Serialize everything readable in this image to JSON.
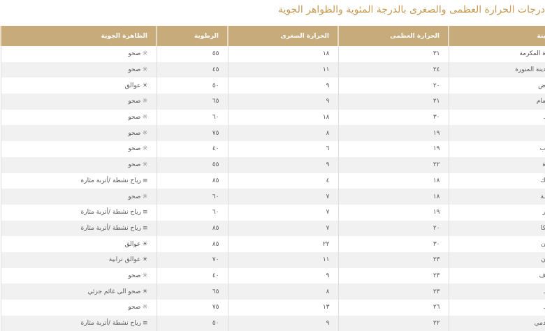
{
  "title": "درجات الحرارة العظمى والصغرى بالدرجة المئوية والظواهر الجوية",
  "headers": {
    "city": "ينة",
    "max": "الحرارة العظمى",
    "min": "الحرارة الصغرى",
    "humidity": "الرطوبة",
    "weather": "الظاهرة الجوية"
  },
  "colors": {
    "header": "#c8ab7a",
    "title": "#c49a52"
  },
  "rows": [
    {
      "city": "ة المكرمة",
      "max": "٣١",
      "min": "١٨",
      "humidity": "٥٥",
      "icon": "sun-icon",
      "weather": "صحو"
    },
    {
      "city": "دينة المنورة",
      "max": "٢٤",
      "min": "١١",
      "humidity": "٤٥",
      "icon": "sun-icon",
      "weather": "صحو"
    },
    {
      "city": "ض",
      "max": "٢٠",
      "min": "٩",
      "humidity": "٥٠",
      "icon": "haze-icon",
      "weather": "عوالق"
    },
    {
      "city": "مام",
      "max": "٢١",
      "min": "٩",
      "humidity": "٦٥",
      "icon": "sun-icon",
      "weather": "صحو"
    },
    {
      "city": "ـ",
      "max": "٣٠",
      "min": "١٨",
      "humidity": "٦٠",
      "icon": "sun-icon",
      "weather": "صحو"
    },
    {
      "city": "",
      "max": "١٩",
      "min": "٨",
      "humidity": "٧٥",
      "icon": "sun-icon",
      "weather": "صحو"
    },
    {
      "city": "ب",
      "max": "١٩",
      "min": "٦",
      "humidity": "٤٠",
      "icon": "sun-icon",
      "weather": "صحو"
    },
    {
      "city": "ة",
      "max": "٢٢",
      "min": "٩",
      "humidity": "٥٥",
      "icon": "sun-icon",
      "weather": "صحو"
    },
    {
      "city": "ك",
      "max": "١٨",
      "min": "٤",
      "humidity": "٨٥",
      "icon": "wind-icon",
      "weather": "رياح نشطة /أتربة مثارة"
    },
    {
      "city": "ـة",
      "max": "١٨",
      "min": "٧",
      "humidity": "٦٠",
      "icon": "sun-icon",
      "weather": "صحو"
    },
    {
      "city": "ر",
      "max": "١٩",
      "min": "٧",
      "humidity": "٦٠",
      "icon": "wind-icon",
      "weather": "رياح نشطة /أتربة مثارة"
    },
    {
      "city": "كا",
      "max": "٢٠",
      "min": "٧",
      "humidity": "٨٥",
      "icon": "wind-icon",
      "weather": "رياح نشطة /أتربة مثارة"
    },
    {
      "city": "ن",
      "max": "٣٠",
      "min": "٢٢",
      "humidity": "٨٥",
      "icon": "haze-icon",
      "weather": "عوالق"
    },
    {
      "city": "ن",
      "max": "٢٣",
      "min": "١١",
      "humidity": "٧٠",
      "icon": "haze-icon",
      "weather": "عوالق ترابية"
    },
    {
      "city": "ف",
      "max": "٢٣",
      "min": "٩",
      "humidity": "٤٠",
      "icon": "sun-icon",
      "weather": "صحو"
    },
    {
      "city": "ـ",
      "max": "٢٣",
      "min": "٨",
      "humidity": "٦٥",
      "icon": "haze-icon",
      "weather": "صحو الى غائم جزئي"
    },
    {
      "city": "ـ",
      "max": "٢٦",
      "min": "١٣",
      "humidity": "٧٥",
      "icon": "sun-icon",
      "weather": "صحو"
    },
    {
      "city": "دمي",
      "max": "٢٢",
      "min": "٩",
      "humidity": "٥٠",
      "icon": "wind-icon",
      "weather": "رياح نشطة /أتربة مثارة"
    }
  ]
}
